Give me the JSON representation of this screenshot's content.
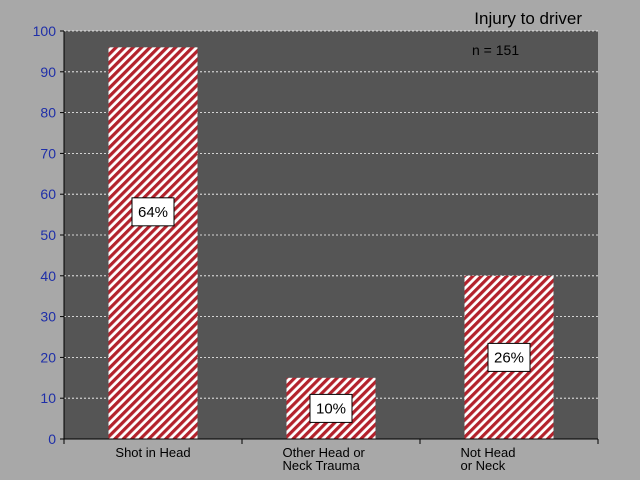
{
  "chart_data": {
    "type": "bar",
    "title": "Injury to driver",
    "annotation": "n = 151",
    "categories": [
      [
        "Shot in Head"
      ],
      [
        "Other Head or",
        "Neck Trauma"
      ],
      [
        "Not Head",
        "or Neck"
      ]
    ],
    "values": [
      96,
      15,
      40
    ],
    "data_labels": [
      "64%",
      "10%",
      "26%"
    ],
    "ylim": [
      0,
      100
    ],
    "yticks": [
      "0",
      "10",
      "20",
      "30",
      "40",
      "50",
      "60",
      "70",
      "80",
      "90",
      "100"
    ],
    "grid": true,
    "xlabel": "",
    "ylabel": ""
  },
  "colors": {
    "background": "#a8a8a8",
    "plot_area": "#555555",
    "bar_stripe_red": "#b3222c",
    "bar_stripe_white": "#ffffff",
    "tick_label": "#1f2fa8",
    "grid": "#ffffff"
  }
}
